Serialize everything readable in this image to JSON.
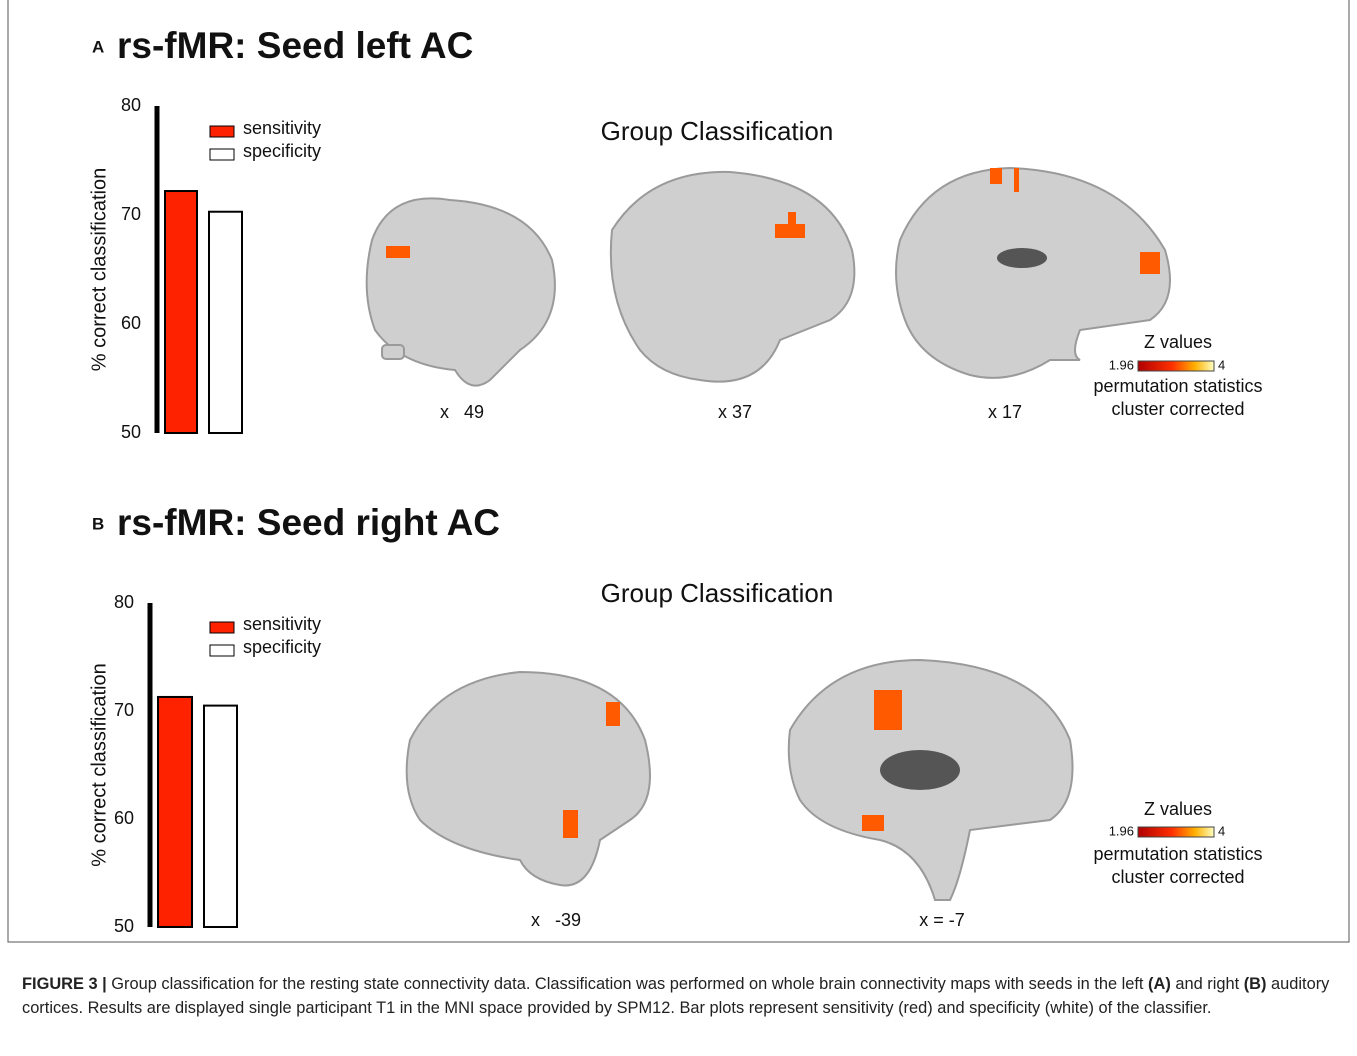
{
  "chart_data": [
    {
      "type": "bar",
      "label": "A",
      "title": "rs-fMR: Seed left AC",
      "ylabel": "% correct classification",
      "categories": [
        null
      ],
      "series": [
        {
          "name": "sensitivity",
          "color": "#ff2200",
          "values": [
            72.2
          ]
        },
        {
          "name": "specificity",
          "color": "#ffffff",
          "values": [
            70.3
          ]
        }
      ],
      "ylim": [
        50,
        80
      ],
      "yticks": [
        50,
        60,
        70,
        80
      ]
    },
    {
      "type": "bar",
      "label": "B",
      "title": "rs-fMR: Seed right AC",
      "ylabel": "% correct classification",
      "categories": [
        null
      ],
      "series": [
        {
          "name": "sensitivity",
          "color": "#ff2200",
          "values": [
            71.3
          ]
        },
        {
          "name": "specificity",
          "color": "#ffffff",
          "values": [
            70.5
          ]
        }
      ],
      "ylim": [
        50,
        80
      ],
      "yticks": [
        50,
        60,
        70,
        80
      ]
    }
  ],
  "panels": [
    {
      "subtitle": "Group Classification",
      "slices": [
        "x   49",
        "x 37",
        "x 17"
      ],
      "colorbar": {
        "title": "Z values",
        "min": 1.96,
        "max": 4,
        "note": [
          "permutation statistics",
          "cluster corrected"
        ]
      }
    },
    {
      "subtitle": "Group Classification",
      "slices": [
        "x   -39",
        "x = -7"
      ],
      "colorbar": {
        "title": "Z values",
        "min": 1.96,
        "max": 4,
        "note": [
          "permutation statistics",
          "cluster corrected"
        ]
      }
    }
  ],
  "caption": {
    "label": "FIGURE 3 |",
    "parts": [
      " Group classification for the resting state connectivity data. Classification was performed on whole brain connectivity maps with seeds in the left ",
      "(A)",
      " and right ",
      "(B)",
      " auditory cortices. Results are displayed single participant T1 in the MNI space provided by SPM12. Bar plots represent sensitivity (red) and specificity (white) of the classifier."
    ]
  }
}
